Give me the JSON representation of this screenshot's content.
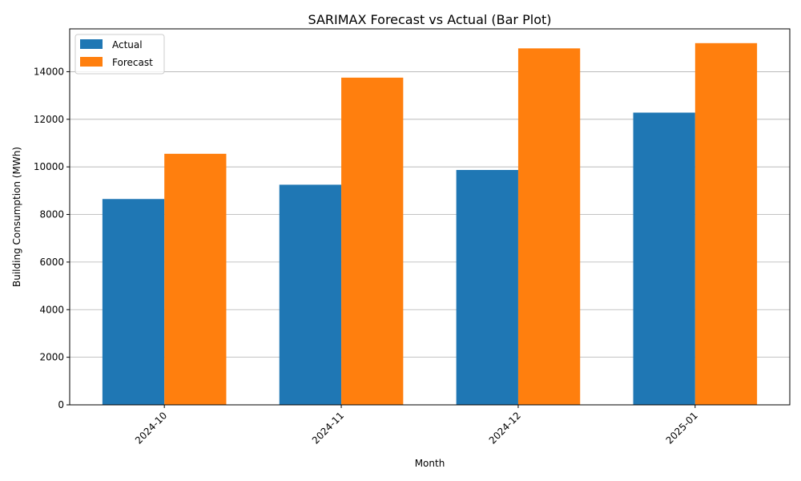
{
  "chart_data": {
    "type": "bar",
    "title": "SARIMAX Forecast vs Actual (Bar Plot)",
    "xlabel": "Month",
    "ylabel": "Building Consumption (MWh)",
    "categories": [
      "2024-10",
      "2024-11",
      "2024-12",
      "2025-01"
    ],
    "series": [
      {
        "name": "Actual",
        "values": [
          8650,
          9250,
          9870,
          12280
        ],
        "color": "#1f77b4"
      },
      {
        "name": "Forecast",
        "values": [
          10550,
          13750,
          14980,
          15200
        ],
        "color": "#ff7f0e"
      }
    ],
    "ylim": [
      0,
      15800
    ],
    "yticks": [
      0,
      2000,
      4000,
      6000,
      8000,
      10000,
      12000,
      14000
    ],
    "grid": "y",
    "legend": "top-left",
    "xtick_rotation": 45
  }
}
